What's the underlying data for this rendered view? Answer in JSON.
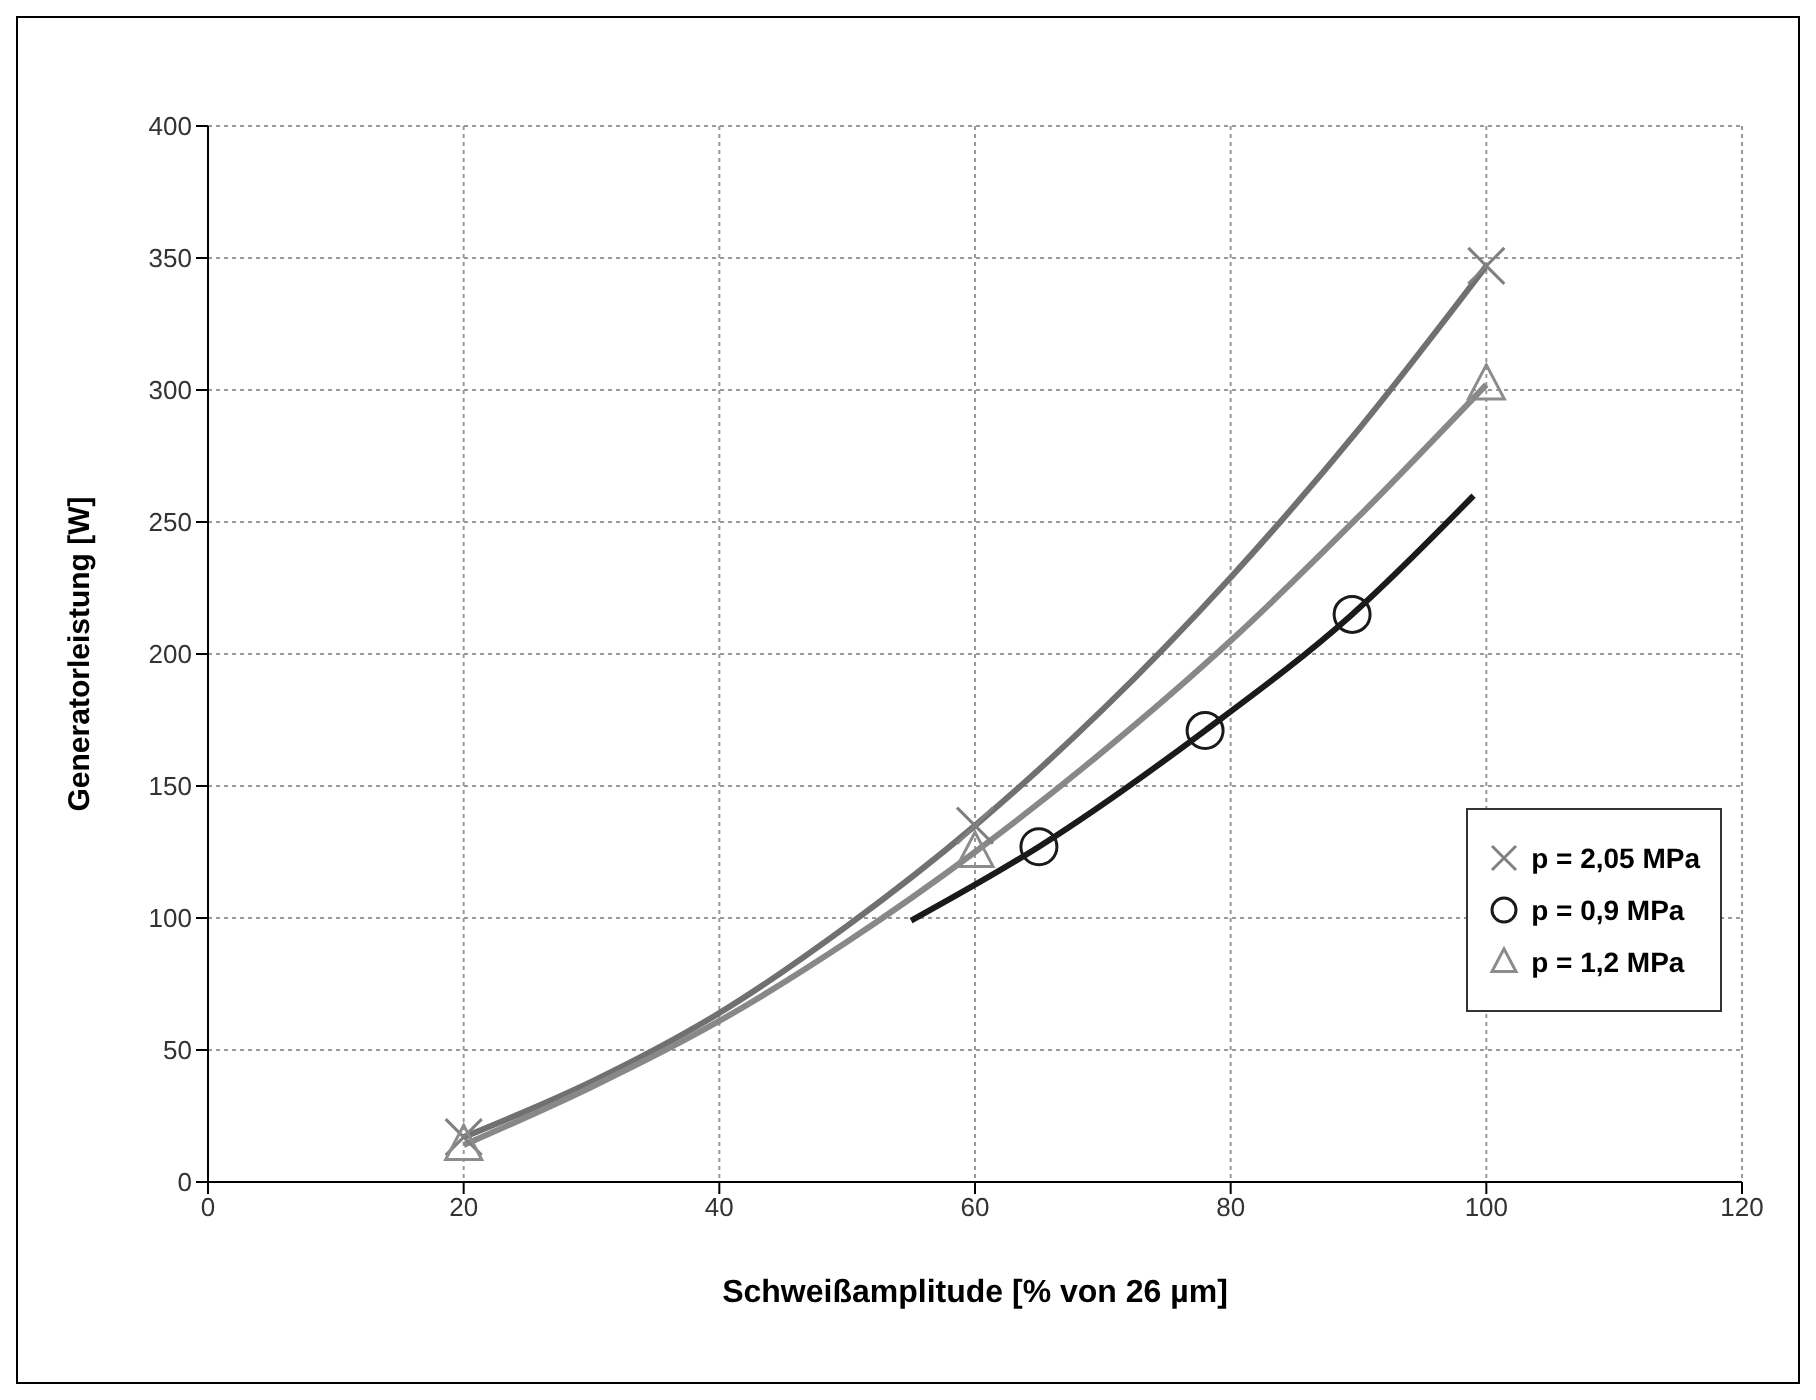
{
  "chart_data": {
    "type": "scatter",
    "xlabel": "Schweißamplitude [% von 26 µm]",
    "ylabel": "Generatorleistung [W]",
    "xlim": [
      0,
      120
    ],
    "xticks": [
      0,
      20,
      40,
      60,
      80,
      100,
      120
    ],
    "ylim": [
      0,
      400
    ],
    "yticks": [
      0,
      50,
      100,
      150,
      200,
      250,
      300,
      350,
      400
    ],
    "grid": true,
    "legend": "right",
    "series": [
      {
        "name": "p = 2,05 MPa",
        "type": "scatter",
        "marker": "cross",
        "color": "#808080",
        "x": [
          20,
          60,
          100
        ],
        "values": [
          17,
          135,
          347
        ]
      },
      {
        "name": "p = 0,9 MPa",
        "type": "scatter",
        "marker": "circle",
        "color": "#1a1a1a",
        "x": [
          65,
          78,
          89.5
        ],
        "values": [
          127,
          171,
          215
        ]
      },
      {
        "name": "p = 1,2 MPa",
        "type": "scatter",
        "marker": "triangle",
        "color": "#8c8c8c",
        "x": [
          20,
          60,
          100
        ],
        "values": [
          14,
          125,
          302
        ]
      },
      {
        "type": "line",
        "marker": "none",
        "color": "#707070",
        "x": [
          20,
          30,
          40,
          50,
          60,
          70,
          80,
          90,
          100
        ],
        "values": [
          17,
          38,
          64,
          97,
          135,
          179,
          229,
          285,
          347
        ]
      },
      {
        "type": "line",
        "marker": "none",
        "color": "#1a1a1a",
        "x": [
          55,
          65,
          78,
          89.5,
          99
        ],
        "values": [
          99,
          127,
          171,
          215,
          260
        ]
      },
      {
        "type": "line",
        "marker": "none",
        "color": "#888888",
        "x": [
          20,
          30,
          40,
          50,
          60,
          70,
          80,
          90,
          100
        ],
        "values": [
          14,
          36,
          61,
          91,
          125,
          163,
          205,
          252,
          302
        ]
      }
    ]
  }
}
